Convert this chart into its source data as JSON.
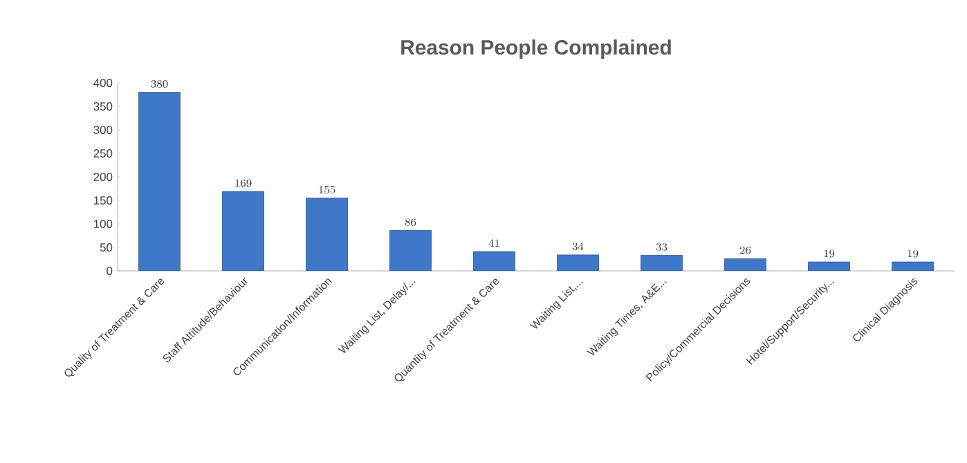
{
  "chart_data": {
    "type": "bar",
    "title": "Reason People Complained",
    "categories": [
      "Quality of Treatment & Care",
      "Staff Attitude/Behaviour",
      "Communication/Information",
      "Waiting List, Delay/...",
      "Quantity of Treatment & Care",
      "Waiting List,...",
      "Waiting Times, A&E...",
      "Policy/Commercial Decisions",
      "Hotel/Support/Security...",
      "Clinical Diagnosis"
    ],
    "values": [
      380,
      169,
      155,
      86,
      41,
      34,
      33,
      26,
      19,
      19
    ],
    "color": "#3f78c8",
    "ylim": [
      0,
      400
    ],
    "yticks": [
      0,
      50,
      100,
      150,
      200,
      250,
      300,
      350,
      400
    ],
    "data_labels": true
  }
}
